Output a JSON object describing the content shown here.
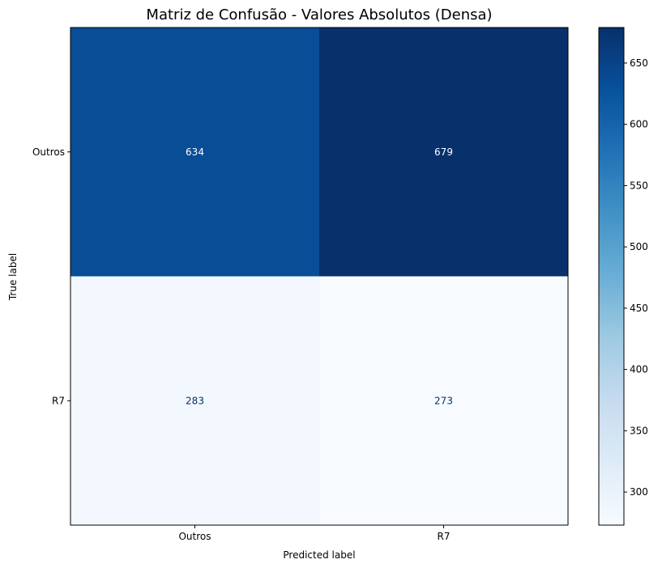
{
  "chart_data": {
    "type": "heatmap",
    "title": "Matriz de Confusão - Valores Absolutos (Densa)",
    "xlabel": "Predicted label",
    "ylabel": "True label",
    "x_categories": [
      "Outros",
      "R7"
    ],
    "y_categories": [
      "Outros",
      "R7"
    ],
    "values": [
      [
        634,
        679
      ],
      [
        283,
        273
      ]
    ],
    "colormap": "Blues",
    "colorbar": {
      "vmin": 273,
      "vmax": 679,
      "ticks": [
        300,
        350,
        400,
        450,
        500,
        550,
        600,
        650
      ]
    },
    "text_colors": {
      "on_dark": "#ffffff",
      "on_light": "#08306b"
    }
  }
}
